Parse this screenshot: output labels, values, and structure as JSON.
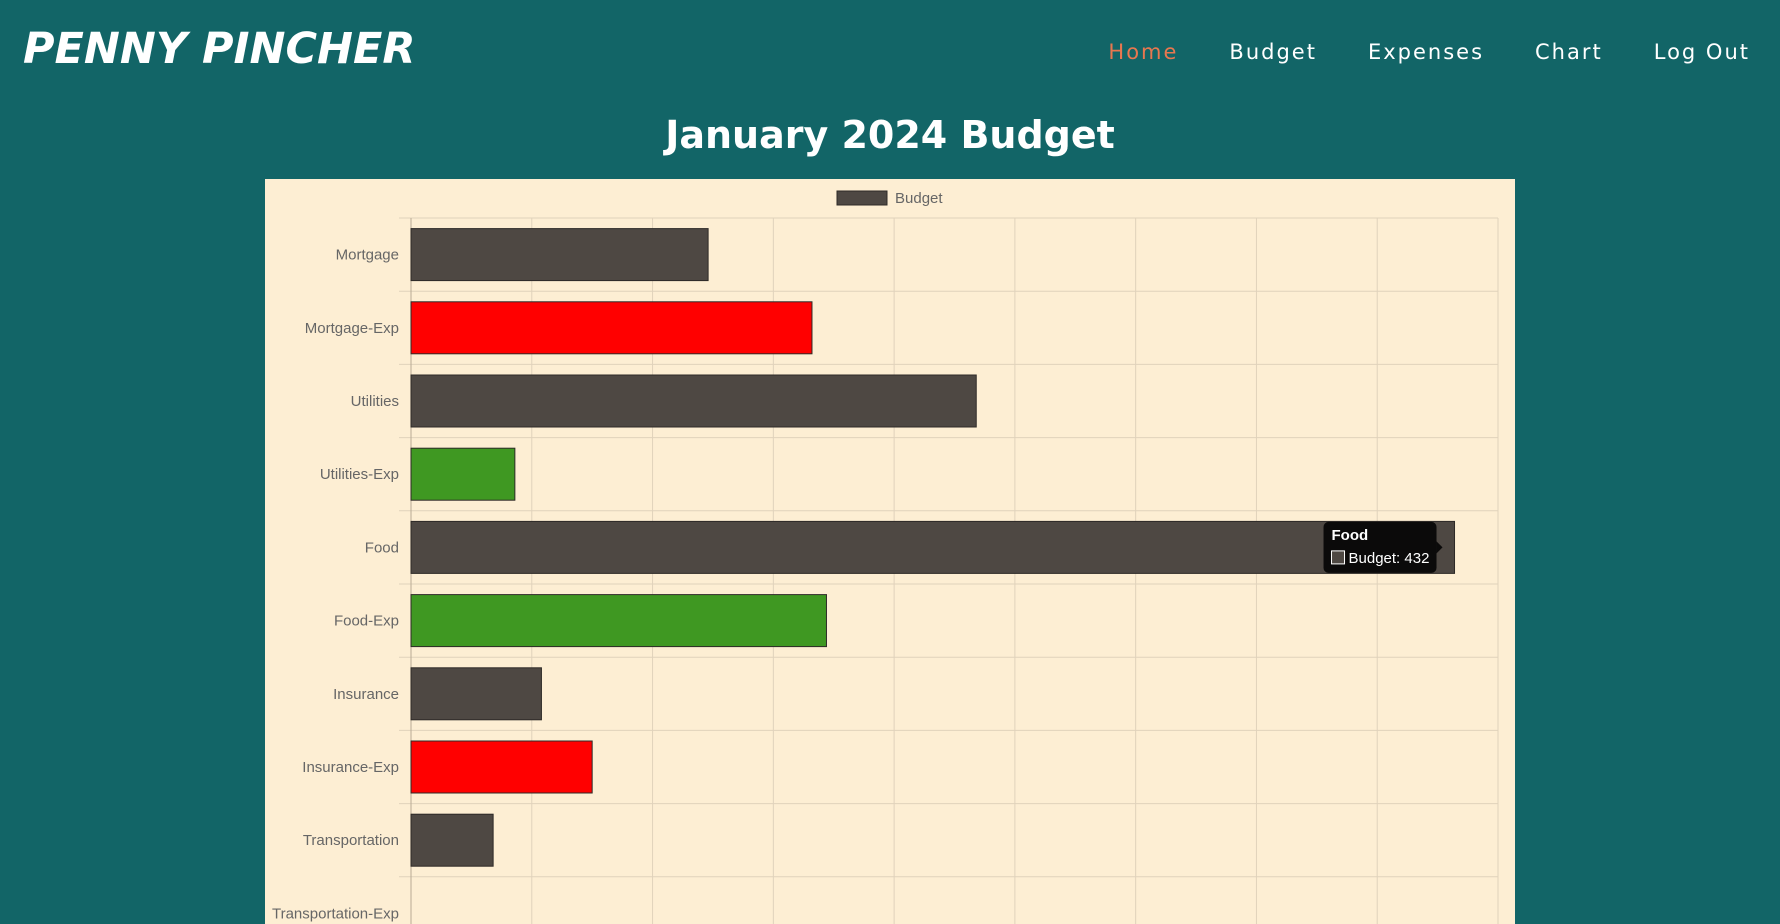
{
  "header": {
    "brand": "PENNY PINCHER",
    "nav": [
      {
        "label": "Home",
        "active": true
      },
      {
        "label": "Budget",
        "active": false
      },
      {
        "label": "Expenses",
        "active": false
      },
      {
        "label": "Chart",
        "active": false
      },
      {
        "label": "Log Out",
        "active": false
      }
    ]
  },
  "page": {
    "title": "January 2024 Budget"
  },
  "colors": {
    "background": "#126567",
    "panel": "#fdeed3",
    "nav_active": "#e8774f",
    "budget_bar": "#4e4843",
    "over_budget": "#ff0000",
    "under_budget": "#3f9822",
    "grid": "#e0d2bb"
  },
  "chart_data": {
    "type": "bar",
    "orientation": "horizontal",
    "title": "",
    "legend": {
      "position": "top",
      "entries": [
        {
          "label": "Budget",
          "color": "#4e4843"
        }
      ]
    },
    "categories": [
      "Mortgage",
      "Mortgage-Exp",
      "Utilities",
      "Utilities-Exp",
      "Food",
      "Food-Exp",
      "Insurance",
      "Insurance-Exp",
      "Transportation",
      "Transportation-Exp"
    ],
    "series": [
      {
        "name": "Budget",
        "values": [
          123,
          166,
          234,
          43,
          432,
          172,
          54,
          75,
          34,
          0
        ],
        "colors": [
          "#4e4843",
          "#ff0000",
          "#4e4843",
          "#3f9822",
          "#4e4843",
          "#3f9822",
          "#4e4843",
          "#ff0000",
          "#4e4843",
          "#4e4843"
        ]
      }
    ],
    "xlim": [
      0,
      450
    ],
    "x_grid_step": 50,
    "grid": true,
    "tooltip": {
      "category": "Food",
      "series": "Budget",
      "value": 432,
      "title": "Food",
      "body": "Budget: 432"
    }
  }
}
